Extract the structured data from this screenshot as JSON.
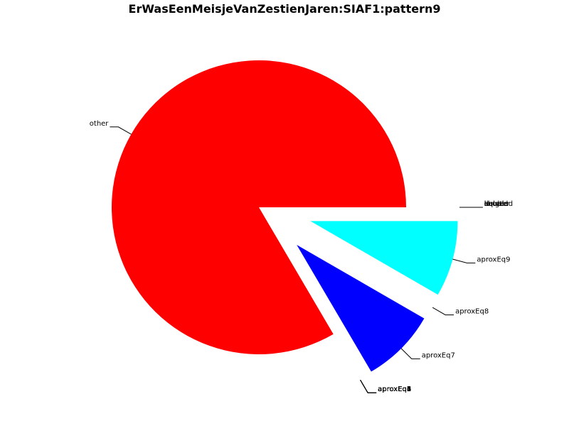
{
  "chart_data": {
    "type": "pie",
    "title": "ErWasEenMeisjeVanZestienJaren:SIAF1:pattern9",
    "slices": [
      {
        "label": "other",
        "fraction": 0.8344,
        "color": "#ff0000",
        "explode": false
      },
      {
        "label": "aproxEq1",
        "fraction": 0.0,
        "color": "#00ffff",
        "explode": true
      },
      {
        "label": "aproxEq2",
        "fraction": 0.0,
        "color": "#00ffff",
        "explode": true
      },
      {
        "label": "aproxEq3",
        "fraction": 0.0,
        "color": "#00ffff",
        "explode": true
      },
      {
        "label": "aproxEq4",
        "fraction": 0.0,
        "color": "#00ffff",
        "explode": true
      },
      {
        "label": "aproxEq5",
        "fraction": 0.0,
        "color": "#00ffff",
        "explode": true
      },
      {
        "label": "aproxEq6",
        "fraction": 0.0,
        "color": "#00ffff",
        "explode": true
      },
      {
        "label": "aproxEq7",
        "fraction": 0.0822,
        "color": "#0000ff",
        "explode": true
      },
      {
        "label": "aproxEq8",
        "fraction": 0.0,
        "color": "#00ffff",
        "explode": true
      },
      {
        "label": "aproxEq9",
        "fraction": 0.0834,
        "color": "#00ffff",
        "explode": true
      },
      {
        "label": "equal",
        "fraction": 0.0,
        "color": "#00ffff",
        "explode": true
      },
      {
        "label": "longer",
        "fraction": 0.0,
        "color": "#00ffff",
        "explode": true
      },
      {
        "label": "shorter",
        "fraction": 0.0,
        "color": "#00ffff",
        "explode": true
      },
      {
        "label": "doubled",
        "fraction": 0.0,
        "color": "#00ffff",
        "explode": true
      },
      {
        "label": "halved",
        "fraction": 0.0,
        "color": "#00ffff",
        "explode": true
      }
    ],
    "legend": "none"
  }
}
